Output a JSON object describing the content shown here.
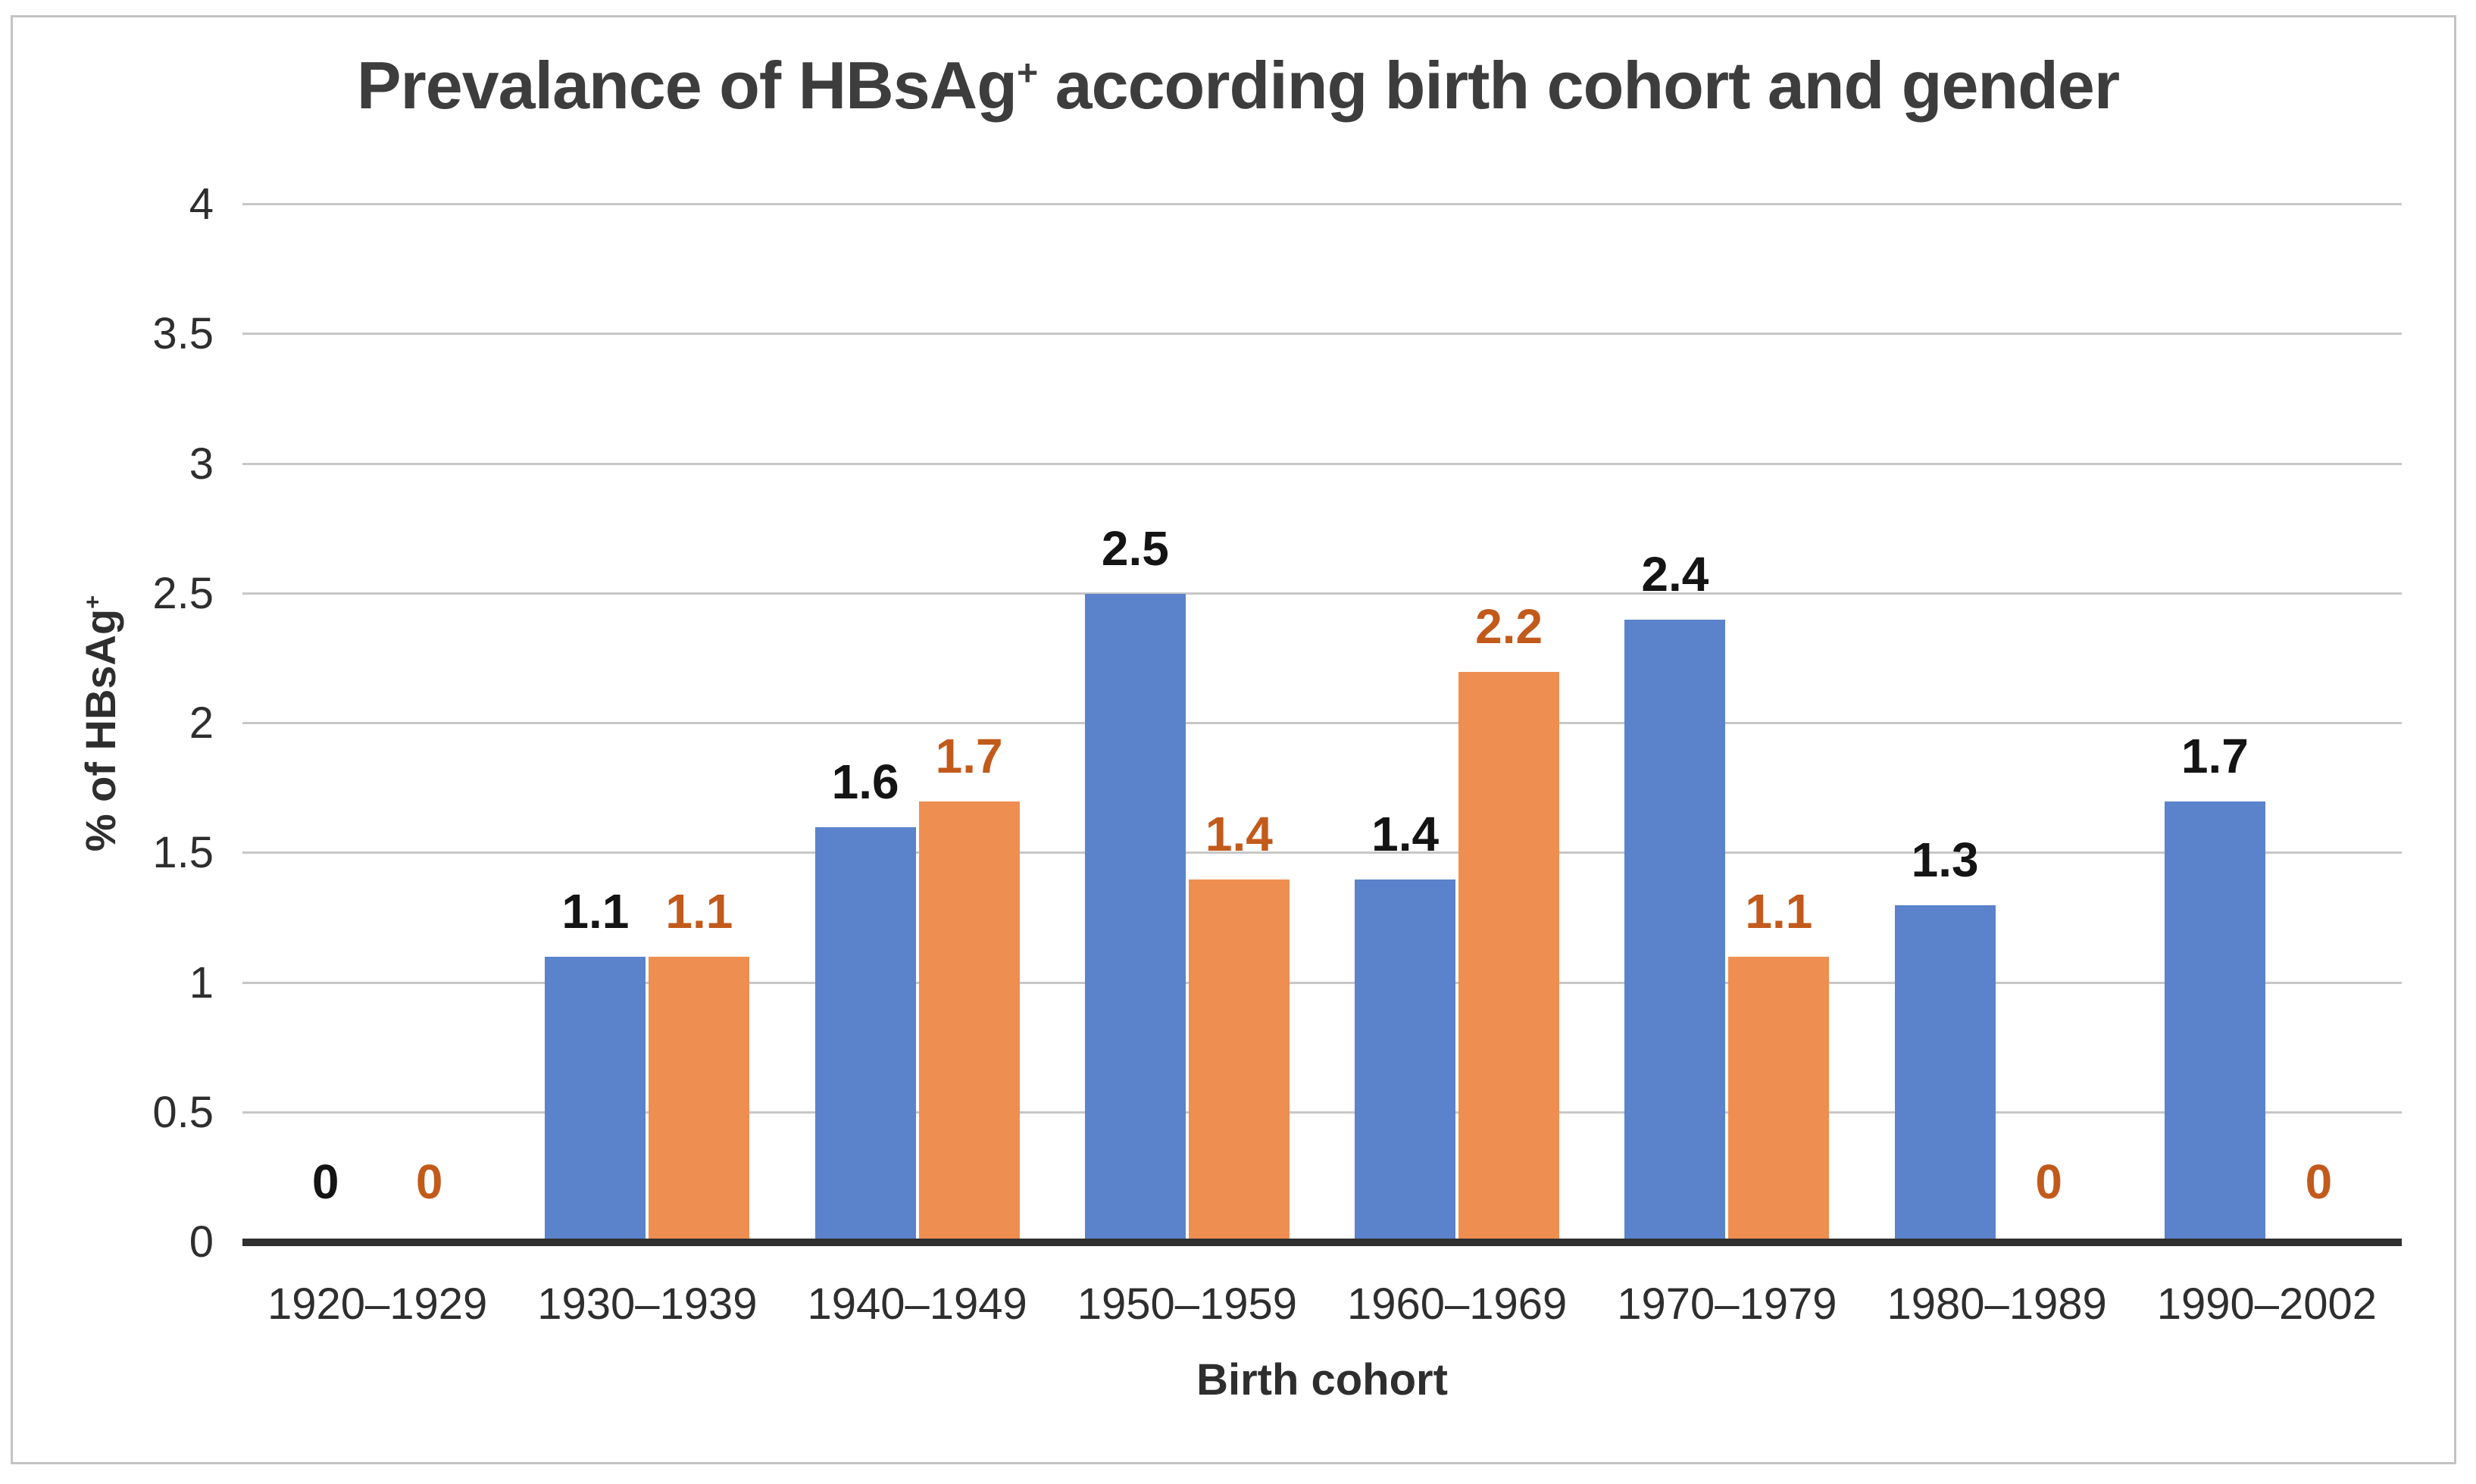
{
  "figure": {
    "title_prefix": "Prevalance of HBsAg",
    "title_sup": "+",
    "title_suffix": " according birth cohort and gender",
    "ylabel_prefix": "% of HBsAg",
    "ylabel_sup": "+",
    "xlabel": "Birth cohort"
  },
  "chart_data": {
    "type": "bar",
    "title": "Prevalance of HBsAg+ according birth cohort and gender",
    "xlabel": "Birth cohort",
    "ylabel": "% of HBsAg+",
    "categories": [
      "1920–1929",
      "1930–1939",
      "1940–1949",
      "1950–1959",
      "1960–1969",
      "1970–1979",
      "1980–1989",
      "1990–2002"
    ],
    "series": [
      {
        "name": "blue-series",
        "color": "#5B83CB",
        "label_color": "#141414",
        "values": [
          0,
          1.1,
          1.6,
          2.5,
          1.4,
          2.4,
          1.3,
          1.7
        ]
      },
      {
        "name": "orange-series",
        "color": "#EF8E51",
        "label_color": "#C25A1B",
        "values": [
          0,
          1.1,
          1.7,
          1.4,
          2.2,
          1.1,
          0,
          0
        ]
      }
    ],
    "ylim": [
      0,
      4
    ],
    "yticks": [
      4,
      3.5,
      3,
      2.5,
      2,
      1.5,
      1,
      0.5,
      0
    ],
    "grid": true,
    "legend_position": "none",
    "data_labels": true
  },
  "colors": {
    "gridline": "#c7c7c7",
    "axis_line": "#303030",
    "tick_text": "#2e2e2e",
    "title_text": "#3d3d3d",
    "frame_border": "#c3c3c3"
  }
}
